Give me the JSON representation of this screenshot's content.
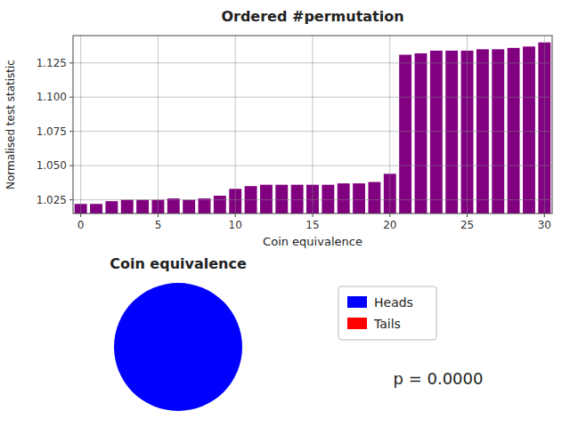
{
  "chart_data": [
    {
      "type": "bar",
      "title": "Ordered #permutation",
      "x_label": "Coin equivalence",
      "y_label": "Normalised test statistic",
      "x": [
        0,
        1,
        2,
        3,
        4,
        5,
        6,
        7,
        8,
        9,
        10,
        11,
        12,
        13,
        14,
        15,
        16,
        17,
        18,
        19,
        20,
        21,
        22,
        23,
        24,
        25,
        26,
        27,
        28,
        29,
        30
      ],
      "values": [
        1.022,
        1.022,
        1.024,
        1.025,
        1.025,
        1.025,
        1.026,
        1.025,
        1.026,
        1.028,
        1.033,
        1.035,
        1.036,
        1.036,
        1.036,
        1.036,
        1.036,
        1.037,
        1.037,
        1.038,
        1.044,
        1.131,
        1.132,
        1.134,
        1.134,
        1.134,
        1.135,
        1.135,
        1.136,
        1.137,
        1.14
      ],
      "color": "#800080",
      "xlim": [
        -0.5,
        30.5
      ],
      "xticks": [
        0,
        5,
        10,
        15,
        20,
        25,
        30
      ],
      "ylim": [
        1.015,
        1.145
      ],
      "yticks": [
        1.025,
        {
          "value": 1.05,
          "label": "1.050"
        },
        1.075,
        {
          "value": 1.1,
          "label": "1.100"
        },
        1.125
      ],
      "grid": true
    },
    {
      "type": "pie",
      "title": "Coin equivalence",
      "categories": [
        "Heads",
        "Tails"
      ],
      "values": [
        1.0,
        1e-06
      ],
      "colors": [
        "blue",
        "red"
      ],
      "legend": "right",
      "annotations": [
        "p = 0.0000"
      ]
    }
  ]
}
